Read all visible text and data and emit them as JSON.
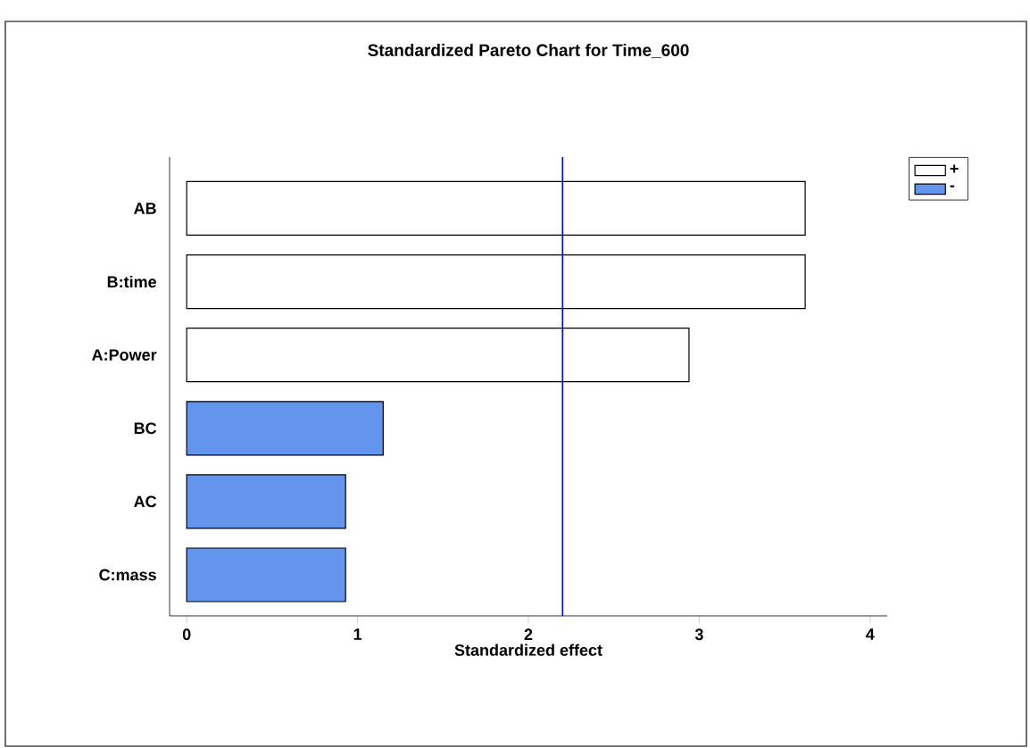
{
  "chart_data": {
    "type": "bar",
    "orientation": "horizontal",
    "title": "Standardized Pareto Chart for Time_600",
    "xlabel": "Standardized effect",
    "categories": [
      "AB",
      "B:time",
      "A:Power",
      "BC",
      "AC",
      "C:mass"
    ],
    "series": [
      {
        "name": "+",
        "color": "#ffffff",
        "values": [
          3.62,
          3.62,
          2.94,
          null,
          null,
          null
        ]
      },
      {
        "name": "-",
        "color": "#6495ed",
        "values": [
          null,
          null,
          null,
          1.15,
          0.93,
          0.93
        ]
      }
    ],
    "xlim": [
      -0.1,
      4.1
    ],
    "xticks": [
      0,
      1,
      2,
      3,
      4
    ],
    "ref_lines": [
      {
        "axis": "x",
        "value": 2.2,
        "color": "#0000ff"
      }
    ],
    "legend": "top right"
  }
}
